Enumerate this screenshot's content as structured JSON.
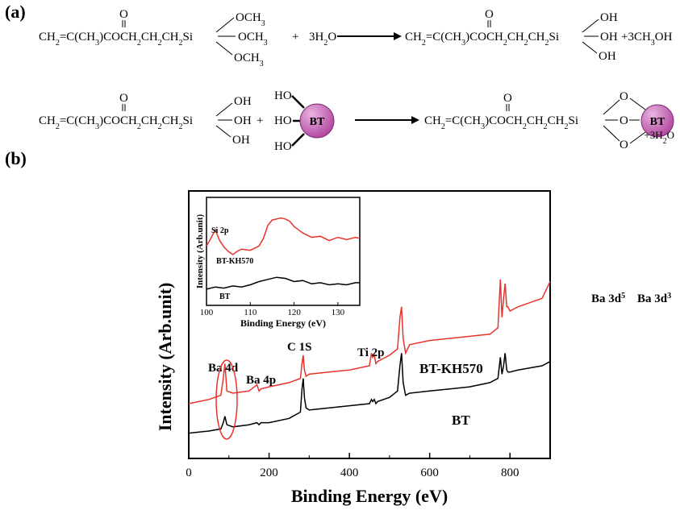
{
  "panel_a": {
    "label": "(a)",
    "reaction1": {
      "reactant_chain": "CH2=C(CH3)COCH2CH2CH2Si",
      "carbonyl_o": "O",
      "substituents": [
        "OCH3",
        "OCH3",
        "OCH3"
      ],
      "plus": "+",
      "reagent": "3H2O",
      "product_chain": "CH2=C(CH3)COCH2CH2CH2Si",
      "product_substituents": [
        "OH",
        "OH",
        "OH"
      ],
      "byproduct": "+3CH3OH"
    },
    "reaction2": {
      "reactant_chain": "CH2=C(CH3)COCH2CH2CH2Si",
      "carbonyl_o": "O",
      "substituents": [
        "OH",
        "OH",
        "OH"
      ],
      "plus": "+",
      "particle_label": "BT",
      "particle_groups": [
        "HO",
        "HO",
        "HO"
      ],
      "product_chain": "CH2=C(CH3)COCH2CH2CH2Si",
      "bridging_o": [
        "O",
        "O",
        "O"
      ],
      "byproduct": "+3H2O"
    },
    "colors": {
      "particle_fill": "#b0449e",
      "particle_highlight": "#e9b4e0"
    }
  },
  "panel_b": {
    "label": "(b)"
  },
  "chart_data": [
    {
      "type": "line",
      "xlabel": "Binding Energy (eV)",
      "ylabel": "Intensity (Arb.unit)",
      "xlim": [
        0,
        900
      ],
      "xticks": [
        0,
        200,
        400,
        600,
        800
      ],
      "yticks_shown": false,
      "series": [
        {
          "name": "BT-KH570",
          "color": "#e8332b",
          "x": [
            0,
            50,
            80,
            86,
            90,
            95,
            110,
            150,
            170,
            175,
            180,
            200,
            250,
            278,
            282,
            285,
            288,
            292,
            300,
            350,
            400,
            450,
            455,
            458,
            462,
            466,
            470,
            500,
            520,
            526,
            530,
            534,
            540,
            550,
            600,
            650,
            700,
            750,
            770,
            776,
            780,
            784,
            788,
            792,
            795,
            800,
            820,
            850,
            880,
            900
          ],
          "y": [
            0.14,
            0.16,
            0.18,
            0.26,
            0.33,
            0.2,
            0.19,
            0.2,
            0.23,
            0.2,
            0.21,
            0.22,
            0.24,
            0.26,
            0.33,
            0.37,
            0.3,
            0.27,
            0.28,
            0.29,
            0.3,
            0.32,
            0.38,
            0.36,
            0.37,
            0.33,
            0.34,
            0.37,
            0.4,
            0.55,
            0.6,
            0.45,
            0.38,
            0.42,
            0.44,
            0.45,
            0.46,
            0.47,
            0.5,
            0.73,
            0.55,
            0.64,
            0.71,
            0.6,
            0.6,
            0.58,
            0.6,
            0.62,
            0.64,
            0.72
          ]
        },
        {
          "name": "BT",
          "color": "#000000",
          "x": [
            0,
            50,
            80,
            86,
            90,
            95,
            110,
            150,
            170,
            175,
            180,
            200,
            250,
            278,
            282,
            285,
            288,
            292,
            300,
            350,
            400,
            450,
            455,
            458,
            462,
            466,
            470,
            500,
            520,
            526,
            530,
            534,
            540,
            550,
            600,
            650,
            700,
            750,
            770,
            776,
            780,
            784,
            788,
            792,
            795,
            800,
            820,
            850,
            880,
            900
          ],
          "y": [
            0.0,
            0.01,
            0.02,
            0.05,
            0.08,
            0.04,
            0.03,
            0.04,
            0.05,
            0.04,
            0.05,
            0.05,
            0.07,
            0.1,
            0.21,
            0.26,
            0.17,
            0.12,
            0.11,
            0.12,
            0.13,
            0.14,
            0.16,
            0.15,
            0.16,
            0.14,
            0.15,
            0.17,
            0.2,
            0.32,
            0.38,
            0.24,
            0.18,
            0.19,
            0.2,
            0.21,
            0.22,
            0.24,
            0.26,
            0.36,
            0.28,
            0.32,
            0.38,
            0.3,
            0.29,
            0.29,
            0.3,
            0.31,
            0.32,
            0.34
          ]
        }
      ],
      "annotations": [
        {
          "text": "Ba 4d",
          "x": 65
        },
        {
          "text": "Ba 4p",
          "x": 175
        },
        {
          "text": "C 1S",
          "x": 290
        },
        {
          "text": "Ti 2p",
          "x": 460
        },
        {
          "text": "Ba 3d",
          "sup": "5",
          "x": 765
        },
        {
          "text": "Ba 3d",
          "sup": "3",
          "x": 845
        }
      ],
      "series_labels": [
        "BT-KH570",
        "BT"
      ]
    },
    {
      "type": "line",
      "inset": true,
      "xlabel": "Binding Energy (eV)",
      "ylabel": "Intensity (Arb.unit)",
      "xlim": [
        100,
        135
      ],
      "xticks": [
        100,
        110,
        120,
        130
      ],
      "annotation": "Si 2p",
      "series": [
        {
          "name": "BT-KH570",
          "color": "#e8332b",
          "x": [
            100,
            101,
            102,
            103,
            104,
            105,
            106,
            107,
            108,
            110,
            112,
            113,
            114,
            115,
            116,
            117,
            118,
            119,
            120,
            121,
            122,
            124,
            126,
            128,
            130,
            132,
            134,
            135
          ],
          "y": [
            0.55,
            0.62,
            0.7,
            0.6,
            0.54,
            0.5,
            0.47,
            0.5,
            0.52,
            0.51,
            0.55,
            0.62,
            0.74,
            0.79,
            0.8,
            0.81,
            0.8,
            0.78,
            0.73,
            0.7,
            0.67,
            0.63,
            0.64,
            0.6,
            0.63,
            0.61,
            0.63,
            0.62
          ]
        },
        {
          "name": "BT",
          "color": "#000000",
          "x": [
            100,
            102,
            104,
            106,
            108,
            110,
            112,
            114,
            116,
            118,
            120,
            122,
            124,
            126,
            128,
            130,
            132,
            134,
            135
          ],
          "y": [
            0.15,
            0.17,
            0.16,
            0.18,
            0.17,
            0.19,
            0.22,
            0.24,
            0.26,
            0.25,
            0.22,
            0.23,
            0.2,
            0.21,
            0.19,
            0.2,
            0.19,
            0.21,
            0.21
          ]
        }
      ],
      "series_labels": [
        "BT-KH570",
        "BT"
      ]
    }
  ]
}
